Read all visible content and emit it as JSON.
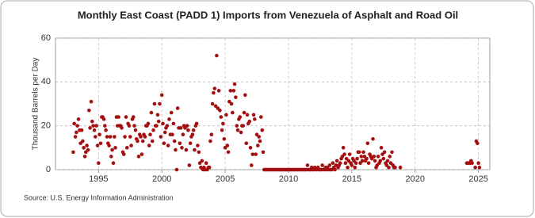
{
  "chart_data": {
    "type": "scatter",
    "title": "Monthly East Coast (PADD 1) Imports from Venezuela of Asphalt and Road Oil",
    "y_label": "Thousand Barrels per Day",
    "source": "Source: U.S. Energy Information Administration",
    "color": "#a50f0f",
    "grid": true,
    "xlim": [
      1991.6,
      2025.9
    ],
    "ylim": [
      0,
      60
    ],
    "xticks": [
      1995,
      2000,
      2005,
      2010,
      2015,
      2020,
      2025
    ],
    "yticks": [
      0,
      20,
      40,
      60
    ],
    "x": [
      1993,
      1993.08,
      1993.17,
      1993.25,
      1993.33,
      1993.42,
      1993.5,
      1993.58,
      1993.67,
      1993.75,
      1993.83,
      1993.92,
      1994,
      1994.08,
      1994.17,
      1994.25,
      1994.33,
      1994.42,
      1994.5,
      1994.58,
      1994.67,
      1994.75,
      1994.83,
      1994.92,
      1995,
      1995.08,
      1995.17,
      1995.25,
      1995.33,
      1995.42,
      1995.5,
      1995.58,
      1995.67,
      1995.75,
      1995.83,
      1995.92,
      1996,
      1996.08,
      1996.17,
      1996.25,
      1996.33,
      1996.42,
      1996.5,
      1996.58,
      1996.67,
      1996.75,
      1996.83,
      1996.92,
      1997,
      1997.08,
      1997.17,
      1997.25,
      1997.33,
      1997.42,
      1997.5,
      1997.58,
      1997.67,
      1997.75,
      1997.83,
      1997.92,
      1998,
      1998.08,
      1998.17,
      1998.25,
      1998.33,
      1998.42,
      1998.5,
      1998.58,
      1998.67,
      1998.75,
      1998.83,
      1998.92,
      1999,
      1999.08,
      1999.17,
      1999.25,
      1999.33,
      1999.42,
      1999.5,
      1999.58,
      1999.67,
      1999.75,
      1999.83,
      1999.92,
      2000,
      2000.08,
      2000.17,
      2000.25,
      2000.33,
      2000.42,
      2000.5,
      2000.58,
      2000.67,
      2000.75,
      2000.83,
      2000.92,
      2001,
      2001.08,
      2001.17,
      2001.25,
      2001.33,
      2001.42,
      2001.5,
      2001.58,
      2001.67,
      2001.75,
      2001.83,
      2001.92,
      2002,
      2002.08,
      2002.17,
      2002.25,
      2002.33,
      2002.42,
      2002.5,
      2002.58,
      2002.67,
      2002.75,
      2002.83,
      2002.92,
      2003,
      2003.08,
      2003.17,
      2003.25,
      2003.33,
      2003.42,
      2003.5,
      2003.58,
      2003.67,
      2003.75,
      2003.83,
      2003.92,
      2004,
      2004.08,
      2004.17,
      2004.25,
      2004.33,
      2004.42,
      2004.5,
      2004.58,
      2004.67,
      2004.75,
      2004.83,
      2004.92,
      2005,
      2005.08,
      2005.17,
      2005.25,
      2005.33,
      2005.42,
      2005.5,
      2005.58,
      2005.67,
      2005.75,
      2005.83,
      2005.92,
      2006,
      2006.08,
      2006.17,
      2006.25,
      2006.33,
      2006.42,
      2006.5,
      2006.58,
      2006.67,
      2006.75,
      2006.83,
      2006.92,
      2007,
      2007.08,
      2007.17,
      2007.25,
      2007.33,
      2007.42,
      2007.5,
      2007.58,
      2007.67,
      2007.75,
      2007.83,
      2007.92,
      2008,
      2008.08,
      2008.17,
      2008.25,
      2008.33,
      2008.42,
      2008.5,
      2008.58,
      2008.67,
      2008.75,
      2008.83,
      2008.92,
      2009,
      2009.08,
      2009.17,
      2009.25,
      2009.33,
      2009.42,
      2009.5,
      2009.58,
      2009.67,
      2009.75,
      2009.83,
      2009.92,
      2010,
      2010.08,
      2010.17,
      2010.25,
      2010.33,
      2010.42,
      2010.5,
      2010.58,
      2010.67,
      2010.75,
      2010.83,
      2010.92,
      2011,
      2011.08,
      2011.17,
      2011.25,
      2011.33,
      2011.42,
      2011.5,
      2011.58,
      2011.67,
      2011.75,
      2011.83,
      2011.92,
      2012,
      2012.08,
      2012.17,
      2012.25,
      2012.33,
      2012.42,
      2012.5,
      2012.58,
      2012.67,
      2012.75,
      2012.83,
      2012.92,
      2013,
      2013.08,
      2013.17,
      2013.25,
      2013.33,
      2013.42,
      2013.5,
      2013.58,
      2013.67,
      2013.75,
      2013.83,
      2013.92,
      2014,
      2014.08,
      2014.17,
      2014.25,
      2014.33,
      2014.42,
      2014.5,
      2014.58,
      2014.67,
      2014.75,
      2014.83,
      2014.92,
      2015,
      2015.08,
      2015.17,
      2015.25,
      2015.33,
      2015.42,
      2015.5,
      2015.58,
      2015.67,
      2015.75,
      2015.83,
      2015.92,
      2016,
      2016.08,
      2016.17,
      2016.25,
      2016.33,
      2016.42,
      2016.5,
      2016.58,
      2016.67,
      2016.75,
      2016.83,
      2016.92,
      2017,
      2017.08,
      2017.17,
      2017.25,
      2017.33,
      2017.42,
      2017.5,
      2017.58,
      2017.67,
      2017.75,
      2017.83,
      2017.92,
      2018,
      2018.08,
      2018.17,
      2018.25,
      2018.33,
      2018.42,
      2018.83,
      2024.08,
      2024.17,
      2024.25,
      2024.33,
      2024.42,
      2024.5,
      2024.75,
      2024.83,
      2024.92,
      2025,
      2025.08
    ],
    "values": [
      8,
      21,
      15,
      17,
      20,
      23,
      18,
      12,
      18,
      13,
      10,
      6,
      8,
      11,
      9,
      27,
      19,
      31,
      22,
      20,
      18,
      15,
      20,
      11,
      3,
      16,
      12,
      24,
      24,
      23,
      20,
      18,
      15,
      12,
      11,
      15,
      6,
      9,
      3,
      15,
      10,
      24,
      20,
      24,
      20,
      20,
      19,
      8,
      7,
      15,
      24,
      10,
      21,
      20,
      15,
      11,
      23,
      24,
      20,
      18,
      14,
      13,
      6,
      16,
      15,
      7,
      13,
      16,
      15,
      20,
      20,
      21,
      11,
      16,
      26,
      13,
      18,
      30,
      20,
      20,
      25,
      22,
      30,
      15,
      34,
      21,
      12,
      17,
      19,
      20,
      11,
      23,
      16,
      26,
      16,
      21,
      13,
      9,
      0,
      28,
      19,
      12,
      19,
      10,
      16,
      20,
      19,
      9,
      20,
      18,
      2,
      12,
      15,
      16,
      18,
      9,
      20,
      21,
      11,
      8,
      3,
      1,
      4,
      0,
      1,
      0,
      3,
      0,
      1,
      1,
      13,
      16,
      30,
      35,
      37,
      29,
      52,
      28,
      36,
      27,
      24,
      18,
      21,
      14,
      10,
      25,
      11,
      8,
      31,
      36,
      30,
      26,
      36,
      39,
      33,
      20,
      18,
      23,
      24,
      17,
      20,
      20,
      26,
      34,
      12,
      25,
      21,
      22,
      10,
      2,
      7,
      25,
      23,
      7,
      16,
      11,
      15,
      13,
      24,
      18,
      8,
      0,
      0,
      0,
      0,
      0,
      0,
      0,
      0,
      0,
      0,
      0,
      0,
      0,
      0,
      0,
      0,
      0,
      0,
      0,
      0,
      0,
      0,
      0,
      0,
      0,
      0,
      0,
      0,
      0,
      0,
      0,
      0,
      0,
      0,
      0,
      0,
      0,
      0,
      0,
      0,
      0,
      2,
      0,
      0,
      0,
      1,
      0,
      0,
      1,
      0,
      0,
      1,
      0,
      0,
      0,
      2,
      0,
      0,
      1,
      0,
      1,
      0,
      2,
      0,
      0,
      3,
      1,
      0,
      2,
      4,
      1,
      2,
      3,
      5,
      6,
      10,
      7,
      3,
      5,
      1,
      4,
      7,
      3,
      2,
      5,
      4,
      1,
      3,
      5,
      8,
      8,
      3,
      6,
      4,
      8,
      6,
      4,
      5,
      12,
      3,
      7,
      6,
      5,
      14,
      6,
      4,
      1,
      2,
      6,
      3,
      4,
      10,
      7,
      5,
      8,
      3,
      2,
      4,
      1,
      6,
      3,
      8,
      2,
      1,
      1,
      1,
      3,
      3,
      3,
      3,
      4,
      3,
      1,
      13,
      12,
      3,
      1
    ]
  }
}
